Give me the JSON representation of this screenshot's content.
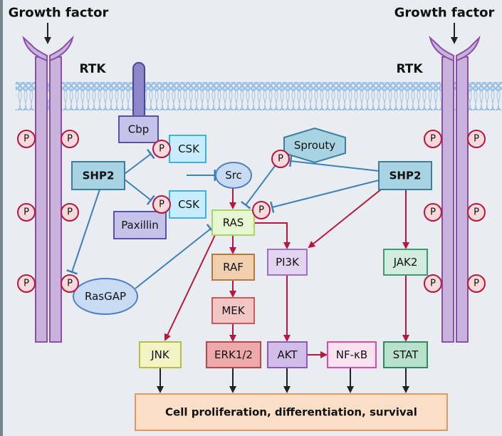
{
  "labels": {
    "growth_factor_left": "Growth factor",
    "growth_factor_right": "Growth factor",
    "rtk_left": "RTK",
    "rtk_right": "RTK",
    "phospho": "P"
  },
  "nodes": {
    "cbp": "Cbp",
    "csk_top": "CSK",
    "csk_bottom": "CSK",
    "shp2_left": "SHP2",
    "shp2_right": "SHP2",
    "src": "Src",
    "paxillin": "Paxillin",
    "sprouty": "Sprouty",
    "ras": "RAS",
    "raf": "RAF",
    "mek": "MEK",
    "erk": "ERK1/2",
    "pi3k": "PI3K",
    "akt": "AKT",
    "nfkb": "NF-κB",
    "jak2": "JAK2",
    "stat": "STAT",
    "jnk": "JNK",
    "rasgap": "RasGAP",
    "outcome": "Cell proliferation, differentiation, survival"
  },
  "colors": {
    "background": "#e9edf2",
    "receptor": "#c9b2dc",
    "activation": "#b5173f",
    "inhibition": "#3f7fba",
    "phospho_fill": "#f8d9dc",
    "phospho_stroke": "#b5173f"
  }
}
